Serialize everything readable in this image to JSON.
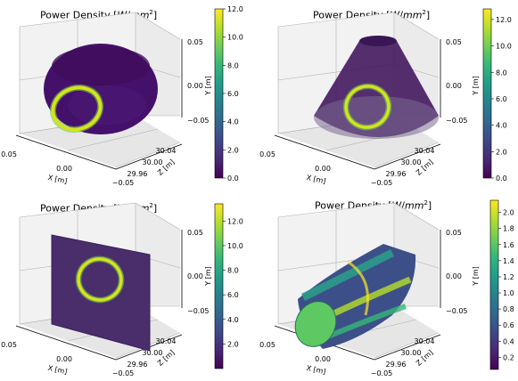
{
  "chart_data": [
    {
      "type": "3d-surface",
      "shape": "sphere",
      "title": "Power Density [W/mm²]",
      "xlabel": "X [m]",
      "ylabel": "Y [m]",
      "zlabel": "Z [m]",
      "x_ticks": [
        "0.05",
        "0.00",
        "−0.05"
      ],
      "z_ticks": [
        "29.96",
        "30.00",
        "30.04"
      ],
      "y_ticks": [
        "−0.05",
        "0.00",
        "0.05"
      ],
      "colorbar": {
        "min": 0,
        "max": 12,
        "ticks": [
          "0.0",
          "2.0",
          "4.0",
          "6.0",
          "8.0",
          "10.0",
          "12.0"
        ]
      },
      "ring": {
        "peak": 12.0
      }
    },
    {
      "type": "3d-surface",
      "shape": "cone",
      "title": "Power Density [W/mm²]",
      "xlabel": "X [m]",
      "ylabel": "Y [m]",
      "zlabel": "Z [m]",
      "x_ticks": [
        "0.05",
        "0.00",
        "−0.05"
      ],
      "z_ticks": [
        "29.96",
        "30.00",
        "30.04"
      ],
      "y_ticks": [
        "−0.05",
        "0.00",
        "0.05"
      ],
      "colorbar": {
        "min": 0,
        "max": 12.8,
        "ticks": [
          "0.0",
          "2.0",
          "4.0",
          "6.0",
          "8.0",
          "10.0",
          "12.0"
        ]
      },
      "ring": {
        "peak": 12.8
      }
    },
    {
      "type": "3d-surface",
      "shape": "plane",
      "title": "Power Density [W/mm²]",
      "xlabel": "X [m]",
      "ylabel": "Y [m]",
      "zlabel": "Z [m]",
      "x_ticks": [
        "0.05",
        "0.00",
        "−0.05"
      ],
      "z_ticks": [
        "29.96",
        "30.00",
        "30.04"
      ],
      "y_ticks": [
        "−0.05",
        "0.00",
        "0.05"
      ],
      "colorbar": {
        "min": 0,
        "max": 13.4,
        "ticks": [
          "2.0",
          "4.0",
          "6.0",
          "8.0",
          "10.0",
          "12.0"
        ]
      },
      "ring": {
        "peak": 13.4
      }
    },
    {
      "type": "3d-surface",
      "shape": "corrugated-cylinder",
      "title": "Power Density [W/mm²]",
      "xlabel": "X [m]",
      "ylabel": "Y [m]",
      "zlabel": "Z [m]",
      "x_ticks": [
        "0.05",
        "0.00",
        "−0.05"
      ],
      "z_ticks": [
        "29.96",
        "30.00",
        "30.04"
      ],
      "y_ticks": [
        "−0.05",
        "0.00",
        "0.05"
      ],
      "colorbar": {
        "min": 0.05,
        "max": 2.15,
        "ticks": [
          "0.2",
          "0.4",
          "0.6",
          "0.8",
          "1.0",
          "1.2",
          "1.4",
          "1.6",
          "1.8",
          "2.0"
        ]
      },
      "ring": {
        "peak": 2.15
      }
    }
  ]
}
